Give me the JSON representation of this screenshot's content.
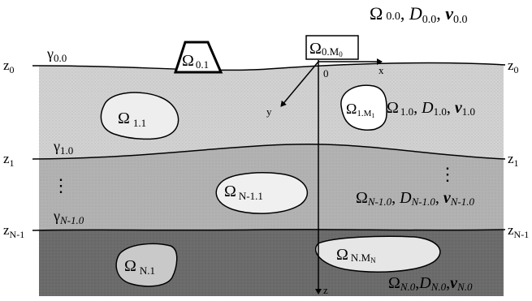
{
  "colors": {
    "background": "#ffffff",
    "layer_top": "#d0d0d0",
    "layer_middle": "#b4b4b4",
    "layer_bottom": "#6c6c6c",
    "inclusion_fill": "#e7e7e7",
    "line": "#000000"
  },
  "top_right_label": {
    "omega": "Ω",
    "omega_sub": "0.0",
    "d": "D",
    "d_sub": "0.0",
    "v": "v",
    "v_sub": "0.0"
  },
  "boundaries": {
    "gamma_0": {
      "symbol": "γ",
      "sub": "0.0"
    },
    "gamma_1": {
      "symbol": "γ",
      "sub": "1.0"
    },
    "gamma_n1": {
      "symbol": "γ",
      "sub": "N-1.0"
    }
  },
  "depth_labels": {
    "z0": {
      "base": "z",
      "sub": "0"
    },
    "z1": {
      "base": "z",
      "sub": "1"
    },
    "zn1": {
      "base": "z",
      "sub": "N-1"
    }
  },
  "axes": {
    "origin": "0",
    "x": "x",
    "y": "y",
    "z": "z"
  },
  "bodies": {
    "surface_01": {
      "omega": "Ω",
      "sub": "0.1"
    },
    "surface_0m": {
      "omega": "Ω",
      "sub": "0.M",
      "sub2": "0"
    },
    "layer1_11": {
      "omega": "Ω",
      "sub": "1.1"
    },
    "layer1_1m": {
      "omega": "Ω",
      "sub": "1.M",
      "sub2": "1"
    },
    "layerN1_1": {
      "omega": "Ω",
      "sub": "N-1.1"
    },
    "layerN_1": {
      "omega": "Ω",
      "sub": "N.1"
    },
    "layerN_m": {
      "omega": "Ω",
      "sub": "N.M",
      "sub2": "N"
    }
  },
  "layer_labels": {
    "layer1": {
      "omega": "Ω",
      "omega_sub": "1.0",
      "d": "D",
      "d_sub": "1.0",
      "v": "v",
      "v_sub": "1.0",
      "sep": ","
    },
    "layerN1": {
      "omega": "Ω",
      "omega_sub": "N-1.0",
      "d": "D",
      "d_sub": "N-1.0",
      "v": "v",
      "v_sub": "N-1.0",
      "sep": ","
    },
    "layerN": {
      "omega": "Ω",
      "omega_sub": "N.0",
      "d": "D",
      "d_sub": "N.0",
      "v": "v",
      "v_sub": "N.0",
      "sep": ","
    }
  },
  "ellipsis_symbol": "⋮"
}
